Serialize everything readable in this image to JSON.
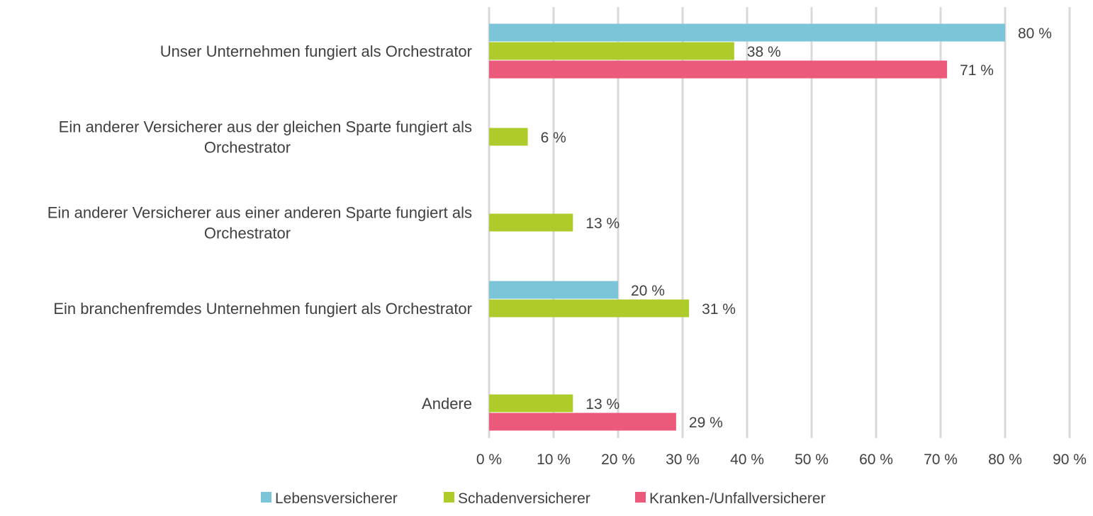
{
  "chart_data": {
    "type": "bar",
    "orientation": "horizontal",
    "categories": [
      [
        "Unser Unternehmen fungiert als Orchestrator"
      ],
      [
        "Ein anderer Versicherer aus der gleichen Sparte fungiert als",
        "Orchestrator"
      ],
      [
        "Ein anderer Versicherer aus einer anderen Sparte fungiert als",
        "Orchestrator"
      ],
      [
        "Ein branchenfremdes Unternehmen fungiert als Orchestrator"
      ],
      [
        "Andere"
      ]
    ],
    "series": [
      {
        "name": "Lebensversicherer",
        "color": "#7AC5D8",
        "values": [
          80,
          null,
          null,
          20,
          null
        ]
      },
      {
        "name": "Schadenversicherer",
        "color": "#AECB2C",
        "values": [
          38,
          6,
          13,
          31,
          13
        ]
      },
      {
        "name": "Kranken-/Unfallversicherer",
        "color": "#EB5A7A",
        "values": [
          71,
          null,
          null,
          null,
          29
        ]
      }
    ],
    "xlim": [
      0,
      90
    ],
    "xticks": [
      0,
      10,
      20,
      30,
      40,
      50,
      60,
      70,
      80,
      90
    ],
    "tick_suffix": " %",
    "value_suffix": " %",
    "grid": true,
    "gridline_color": "#D9D9D9",
    "legend_position": "bottom",
    "text_color": "#404040"
  }
}
